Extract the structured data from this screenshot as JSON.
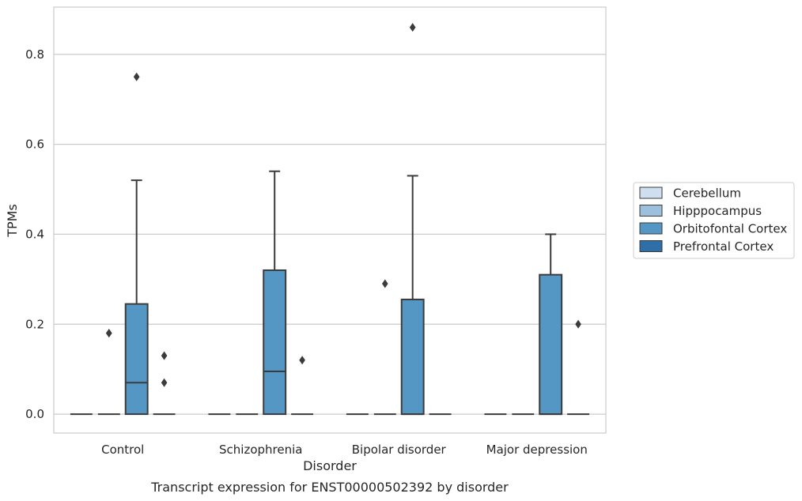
{
  "caption": "Transcript expression for ENST00000502392 by disorder",
  "chart_data": {
    "type": "box",
    "xlabel": "Disorder",
    "ylabel": "TPMs",
    "ylim": [
      -0.042,
      0.905
    ],
    "yticks": [
      "0.0",
      "0.2",
      "0.4",
      "0.6",
      "0.8"
    ],
    "ytick_values": [
      0.0,
      0.2,
      0.4,
      0.6,
      0.8
    ],
    "grid": "horizontal",
    "legend_position": "right",
    "categories": [
      "Control",
      "Schizophrenia",
      "Bipolar disorder",
      "Major depression"
    ],
    "series": [
      {
        "name": "Cerebellum",
        "color": "#cfdff0",
        "boxes": [
          {
            "q1": 0,
            "median": 0,
            "q3": 0,
            "whisker_low": 0,
            "whisker_high": 0,
            "outliers": []
          },
          {
            "q1": 0,
            "median": 0,
            "q3": 0,
            "whisker_low": 0,
            "whisker_high": 0,
            "outliers": []
          },
          {
            "q1": 0,
            "median": 0,
            "q3": 0,
            "whisker_low": 0,
            "whisker_high": 0,
            "outliers": []
          },
          {
            "q1": 0,
            "median": 0,
            "q3": 0,
            "whisker_low": 0,
            "whisker_high": 0,
            "outliers": []
          }
        ]
      },
      {
        "name": "Hipppocampus",
        "color": "#9dc1dd",
        "boxes": [
          {
            "q1": 0,
            "median": 0,
            "q3": 0,
            "whisker_low": 0,
            "whisker_high": 0,
            "outliers": [
              0.18,
              0.18
            ]
          },
          {
            "q1": 0,
            "median": 0,
            "q3": 0,
            "whisker_low": 0,
            "whisker_high": 0,
            "outliers": []
          },
          {
            "q1": 0,
            "median": 0,
            "q3": 0,
            "whisker_low": 0,
            "whisker_high": 0,
            "outliers": [
              0.29
            ]
          },
          {
            "q1": 0,
            "median": 0,
            "q3": 0,
            "whisker_low": 0,
            "whisker_high": 0,
            "outliers": []
          }
        ]
      },
      {
        "name": "Orbitofontal Cortex",
        "color": "#5597c4",
        "boxes": [
          {
            "q1": 0,
            "median": 0.07,
            "q3": 0.245,
            "whisker_low": 0,
            "whisker_high": 0.52,
            "outliers": [
              0.75
            ]
          },
          {
            "q1": 0,
            "median": 0.095,
            "q3": 0.32,
            "whisker_low": 0,
            "whisker_high": 0.54,
            "outliers": []
          },
          {
            "q1": 0,
            "median": 0,
            "q3": 0.255,
            "whisker_low": 0,
            "whisker_high": 0.53,
            "outliers": [
              0.86
            ]
          },
          {
            "q1": 0,
            "median": 0,
            "q3": 0.31,
            "whisker_low": 0,
            "whisker_high": 0.4,
            "outliers": []
          }
        ]
      },
      {
        "name": "Prefrontal Cortex",
        "color": "#2e6fa8",
        "boxes": [
          {
            "q1": 0,
            "median": 0,
            "q3": 0,
            "whisker_low": 0,
            "whisker_high": 0,
            "outliers": [
              0.13,
              0.07
            ]
          },
          {
            "q1": 0,
            "median": 0,
            "q3": 0,
            "whisker_low": 0,
            "whisker_high": 0,
            "outliers": [
              0.12
            ]
          },
          {
            "q1": 0,
            "median": 0,
            "q3": 0,
            "whisker_low": 0,
            "whisker_high": 0,
            "outliers": []
          },
          {
            "q1": 0,
            "median": 0,
            "q3": 0,
            "whisker_low": 0,
            "whisker_high": 0,
            "outliers": [
              0.2
            ]
          }
        ]
      }
    ]
  }
}
